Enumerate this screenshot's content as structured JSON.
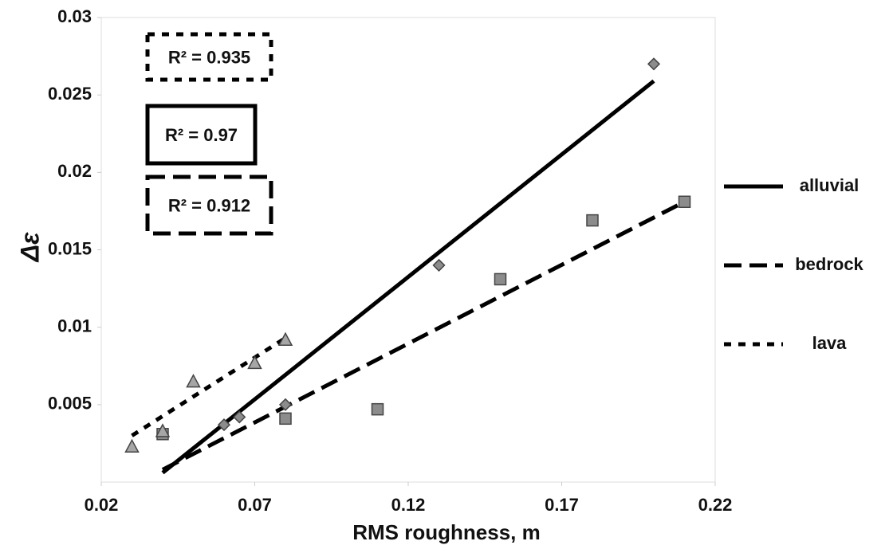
{
  "chart_data": {
    "type": "scatter",
    "xlabel": "RMS roughness, m",
    "ylabel": "Δε",
    "xlim": [
      0.02,
      0.22
    ],
    "xticks": [
      0.02,
      0.07,
      0.12,
      0.17,
      0.22
    ],
    "ylim": [
      0,
      0.03
    ],
    "yticks": [
      0.005,
      0.01,
      0.015,
      0.02,
      0.025,
      0.03
    ],
    "grid": false,
    "legend": "right",
    "series": [
      {
        "name": "alluvial",
        "marker": "diamond",
        "color": "#8c8c8c",
        "dash": "solid",
        "x": [
          0.06,
          0.065,
          0.08,
          0.13,
          0.2
        ],
        "y": [
          0.0037,
          0.0042,
          0.005,
          0.014,
          0.027
        ],
        "fit": {
          "x": [
            0.04,
            0.2
          ],
          "y": [
            0.0006,
            0.0259
          ]
        },
        "r2_label": "R² = 0.97"
      },
      {
        "name": "bedrock",
        "marker": "square",
        "color": "#8c8c8c",
        "dash": "dashed",
        "x": [
          0.04,
          0.08,
          0.11,
          0.15,
          0.18,
          0.21
        ],
        "y": [
          0.0031,
          0.0041,
          0.0047,
          0.0131,
          0.0169,
          0.0181
        ],
        "fit": {
          "x": [
            0.04,
            0.21
          ],
          "y": [
            0.0008,
            0.0181
          ]
        },
        "r2_label": "R² = 0.912"
      },
      {
        "name": "lava",
        "marker": "triangle",
        "color": "#a6a6a6",
        "dash": "dotted",
        "x": [
          0.03,
          0.04,
          0.05,
          0.07,
          0.08
        ],
        "y": [
          0.0023,
          0.0033,
          0.0065,
          0.0077,
          0.0092
        ],
        "fit": {
          "x": [
            0.03,
            0.08
          ],
          "y": [
            0.003,
            0.0093
          ]
        },
        "r2_label": "R² = 0.935"
      }
    ]
  }
}
